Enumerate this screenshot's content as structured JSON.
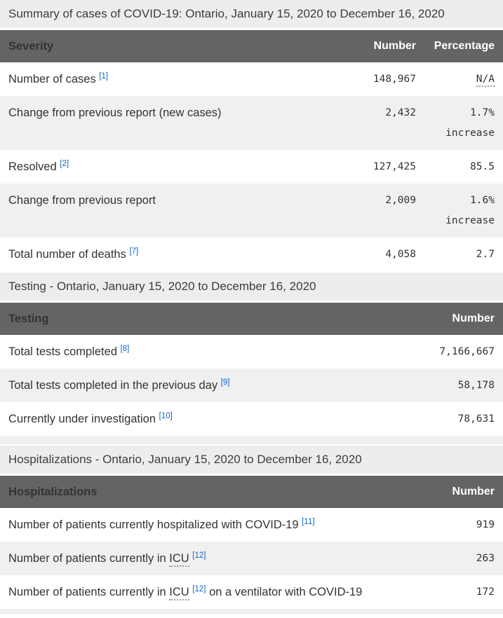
{
  "colors": {
    "header_background": "#646464",
    "header_text": "#ffffff",
    "caption_background": "#ededed",
    "alternate_row_background": "#f0f0f0",
    "body_text": "#333333",
    "footnote_link": "#0b66c9"
  },
  "tables": [
    {
      "name": "summary",
      "caption": "Summary of cases of COVID-19: Ontario, January 15, 2020 to December 16, 2020",
      "columns": [
        "Severity",
        "Number",
        "Percentage"
      ],
      "rows": [
        {
          "label": [
            {
              "text": "Number of cases"
            },
            {
              "sup": "[1]"
            }
          ],
          "number": "148,967",
          "percent": [
            {
              "text": "N/A",
              "abbr": true
            }
          ]
        },
        {
          "label": [
            {
              "text": "Change from previous report (new cases)"
            }
          ],
          "number": "2,432",
          "percent": [
            {
              "text": "1.7%"
            },
            {
              "text": "increase"
            }
          ]
        },
        {
          "label": [
            {
              "text": "Resolved"
            },
            {
              "sup": "[2]"
            }
          ],
          "number": "127,425",
          "percent": [
            {
              "text": "85.5"
            }
          ]
        },
        {
          "label": [
            {
              "text": "Change from previous report"
            }
          ],
          "number": "2,009",
          "percent": [
            {
              "text": "1.6%"
            },
            {
              "text": "increase"
            }
          ]
        },
        {
          "label": [
            {
              "text": "Total number of deaths"
            },
            {
              "sup": "[7]"
            }
          ],
          "number": "4,058",
          "percent": [
            {
              "text": "2.7"
            }
          ]
        }
      ]
    },
    {
      "name": "testing",
      "caption": "Testing - Ontario, January 15, 2020 to December 16, 2020",
      "columns": [
        "Testing",
        "Number"
      ],
      "rows": [
        {
          "label": [
            {
              "text": "Total tests completed"
            },
            {
              "sup": "[8]"
            }
          ],
          "number": "7,166,667"
        },
        {
          "label": [
            {
              "text": "Total tests completed in the previous day"
            },
            {
              "sup": "[9]"
            }
          ],
          "number": "58,178"
        },
        {
          "label": [
            {
              "text": "Currently under investigation"
            },
            {
              "sup": "[10]"
            }
          ],
          "number": "78,631"
        },
        {
          "stub": true
        }
      ]
    },
    {
      "name": "hospitalizations",
      "caption": "Hospitalizations - Ontario, January 15, 2020 to December 16, 2020",
      "columns": [
        "Hospitalizations",
        "Number"
      ],
      "rows": [
        {
          "label": [
            {
              "text": "Number of patients currently hospitalized with COVID-19"
            },
            {
              "sup": "[11]"
            }
          ],
          "number": "919"
        },
        {
          "label": [
            {
              "text": "Number of patients currently in"
            },
            {
              "abbr": "ICU"
            },
            {
              "sup": "[12]"
            }
          ],
          "number": "263"
        },
        {
          "label": [
            {
              "text": "Number of patients currently in"
            },
            {
              "abbr": "ICU"
            },
            {
              "sup": "[12]"
            },
            {
              "text": "on a ventilator with COVID-19"
            }
          ],
          "number": "172"
        },
        {
          "stub": true
        }
      ]
    }
  ]
}
